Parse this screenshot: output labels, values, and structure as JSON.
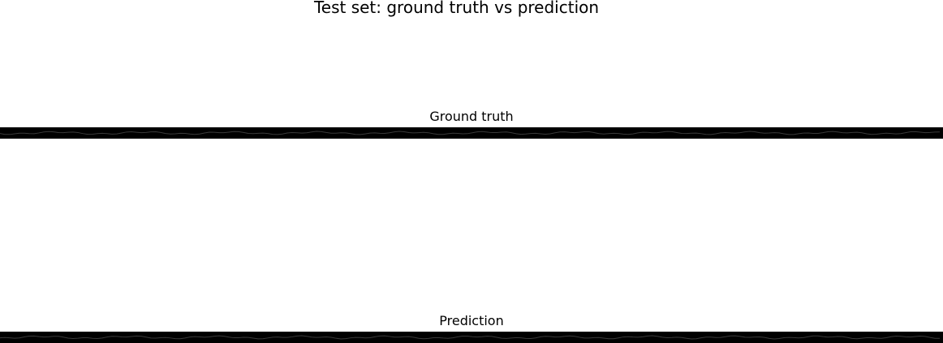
{
  "figure": {
    "title": "Test set: ground truth vs prediction"
  },
  "chart_data": [
    {
      "type": "heatmap",
      "title": "Ground truth",
      "xlabel": "",
      "ylabel": "",
      "grid": false,
      "axes_visible": false,
      "rows": 1,
      "colors": [
        "#000000",
        "#ffffff"
      ]
    },
    {
      "type": "heatmap",
      "title": "Prediction",
      "xlabel": "",
      "ylabel": "",
      "grid": false,
      "axes_visible": false,
      "rows": 1,
      "colors": [
        "#000000",
        "#ffffff"
      ]
    }
  ]
}
